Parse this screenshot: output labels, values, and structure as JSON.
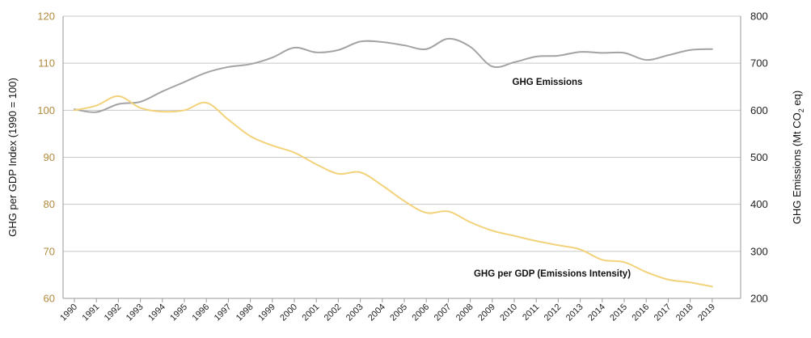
{
  "chart_data": {
    "type": "line",
    "x": [
      "1990",
      "1991",
      "1992",
      "1993",
      "1994",
      "1995",
      "1996",
      "1997",
      "1998",
      "1999",
      "2000",
      "2001",
      "2002",
      "2003",
      "2004",
      "2005",
      "2006",
      "2007",
      "2008",
      "2009",
      "2010",
      "2011",
      "2012",
      "2013",
      "2014",
      "2015",
      "2016",
      "2017",
      "2018",
      "2019"
    ],
    "y_left": {
      "label": "GHG per GDP Index (1990 = 100)",
      "range": [
        60,
        120
      ],
      "ticks": [
        60,
        70,
        80,
        90,
        100,
        110,
        120
      ]
    },
    "y_right": {
      "label_main": "GHG Emissions (Mt CO",
      "label_sub": "2",
      "label_tail": " eq)",
      "range": [
        200,
        800
      ],
      "ticks": [
        200,
        300,
        400,
        500,
        600,
        700,
        800
      ]
    },
    "series": [
      {
        "name": "GHG Emissions",
        "axis": "right",
        "color": "#a3a3a3",
        "values": [
          602,
          596,
          613,
          618,
          640,
          660,
          680,
          692,
          698,
          712,
          733,
          723,
          728,
          746,
          745,
          738,
          730,
          752,
          735,
          693,
          702,
          714,
          716,
          724,
          722,
          722,
          707,
          717,
          728,
          730
        ]
      },
      {
        "name": "GHG per GDP (Emissions Intensity)",
        "axis": "left",
        "color": "#f2d27a",
        "values": [
          100,
          101,
          103,
          100.5,
          99.7,
          100,
          101.6,
          98,
          94.5,
          92.5,
          91,
          88.5,
          86.5,
          86.8,
          84,
          80.7,
          78.2,
          78.5,
          76.2,
          74.4,
          73.3,
          72.2,
          71.3,
          70.4,
          68.2,
          67.7,
          65.6,
          64,
          63.4,
          62.5
        ]
      }
    ],
    "grid": true
  }
}
